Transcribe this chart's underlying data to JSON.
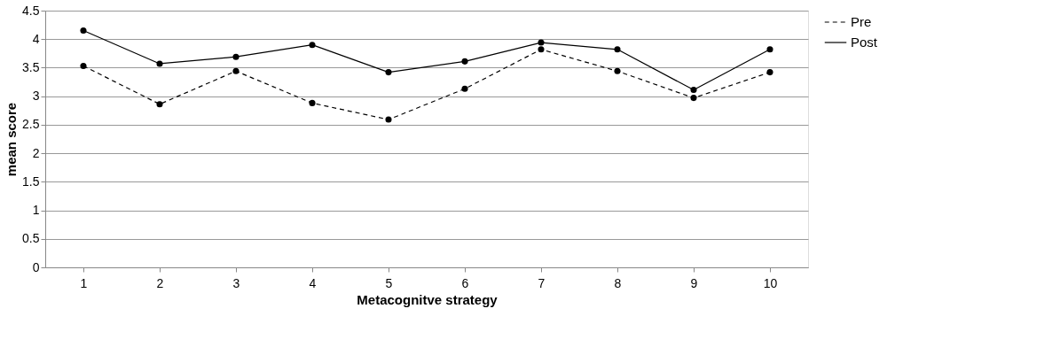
{
  "chart_data": {
    "type": "line",
    "xlabel": "Metacognitve strategy",
    "ylabel": "mean score",
    "categories": [
      "1",
      "2",
      "3",
      "4",
      "5",
      "6",
      "7",
      "8",
      "9",
      "10"
    ],
    "series": [
      {
        "name": "Pre",
        "color": "#000000",
        "line_style": "dashed",
        "values": [
          3.53,
          2.86,
          3.44,
          2.88,
          2.59,
          3.13,
          3.82,
          3.44,
          2.97,
          3.42
        ]
      },
      {
        "name": "Post",
        "color": "#000000",
        "line_style": "solid",
        "values": [
          4.15,
          3.57,
          3.69,
          3.9,
          3.42,
          3.61,
          3.94,
          3.82,
          3.11,
          3.82
        ]
      }
    ],
    "ylim": [
      0,
      4.5
    ],
    "yticks": [
      0,
      0.5,
      1,
      1.5,
      2,
      2.5,
      3,
      3.5,
      4,
      4.5
    ],
    "grid": "y",
    "legend": "right",
    "marker": "circle"
  }
}
